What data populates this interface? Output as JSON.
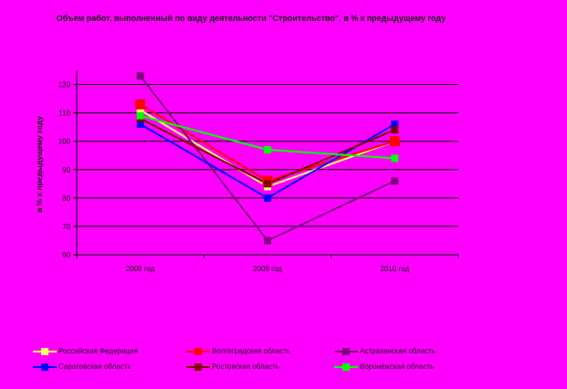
{
  "chart_data": {
    "type": "line",
    "title": "Объем работ, выполненный по виду деятельности \"Строительство\", в % к предыдущему году",
    "xlabel": "",
    "ylabel": "в % к предыдущему году",
    "categories": [
      "2008 год",
      "2009 год",
      "2010 год"
    ],
    "ylim": [
      60,
      125
    ],
    "yticks": [
      60,
      70,
      80,
      90,
      100,
      110,
      120
    ],
    "grid": true,
    "legend_position": "bottom",
    "series": [
      {
        "name": "Российская Федерация",
        "values": [
          111,
          84,
          100
        ],
        "color": "#ffff66",
        "marker_size": 8
      },
      {
        "name": "Волгоградская область",
        "values": [
          113,
          86,
          100
        ],
        "color": "#ff0000",
        "marker_size": 11
      },
      {
        "name": "Астраханская область",
        "values": [
          123,
          65,
          86
        ],
        "color": "#800080",
        "marker_size": 8
      },
      {
        "name": "Саратовская область",
        "values": [
          106,
          80,
          106
        ],
        "color": "#0000ff",
        "marker_size": 8
      },
      {
        "name": "Ростовская область",
        "values": [
          108,
          85,
          104
        ],
        "color": "#800000",
        "marker_size": 8
      },
      {
        "name": "Воронежская область",
        "values": [
          109,
          97,
          94
        ],
        "color": "#00ff00",
        "marker_size": 8
      }
    ]
  }
}
